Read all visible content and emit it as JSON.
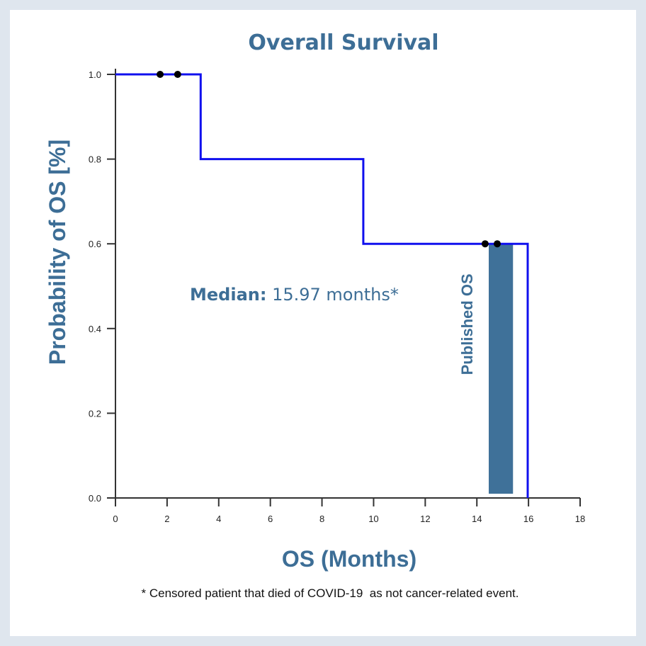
{
  "chart_data": {
    "type": "line",
    "subtype": "kaplan-meier",
    "title": "Overall Survival",
    "xlabel": "OS (Months)",
    "ylabel": "Probability of OS [%]",
    "xlim": [
      0,
      18
    ],
    "ylim": [
      0,
      1.0
    ],
    "x_ticks": [
      0,
      2,
      4,
      6,
      8,
      10,
      12,
      14,
      16,
      18
    ],
    "x_tick_labels": [
      "0",
      "2",
      "4",
      "6",
      "8",
      "10",
      "12",
      "14",
      "16",
      "18"
    ],
    "y_ticks": [
      0.0,
      0.2,
      0.4,
      0.6,
      0.8,
      1.0
    ],
    "y_tick_labels": [
      "0.0",
      "0.2",
      "0.4",
      "0.6",
      "0.8",
      "1.0"
    ],
    "grid": false,
    "series": [
      {
        "name": "Overall Survival",
        "color": "#1010ee",
        "steps": [
          {
            "x": 0,
            "y": 1.0
          },
          {
            "x": 3.3,
            "y": 1.0
          },
          {
            "x": 3.3,
            "y": 0.8
          },
          {
            "x": 9.6,
            "y": 0.8
          },
          {
            "x": 9.6,
            "y": 0.6
          },
          {
            "x": 15.97,
            "y": 0.6
          },
          {
            "x": 15.97,
            "y": 0.0
          }
        ],
        "censored": [
          {
            "x": 1.73,
            "y": 1.0
          },
          {
            "x": 2.41,
            "y": 1.0
          },
          {
            "x": 14.32,
            "y": 0.6
          },
          {
            "x": 14.79,
            "y": 0.6
          }
        ]
      }
    ],
    "published_os_band": {
      "label": "Published OS",
      "x_start": 14.46,
      "x_end": 15.4,
      "y_start": 0.01,
      "y_end": 0.6,
      "color": "#3f7199"
    },
    "annotations": [
      {
        "label_bold": "Median:",
        "label": " 15.97 months*"
      }
    ],
    "footnote": "* Censored patient that died of COVID-19  as not cancer-related event."
  },
  "colors": {
    "background": "#dfe6ee",
    "card": "#ffffff",
    "text_accent": "#3d6e96",
    "curve": "#1010ee",
    "band": "#3f7199"
  }
}
